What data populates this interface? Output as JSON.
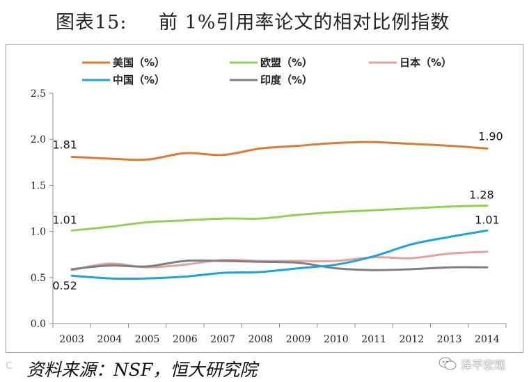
{
  "title": {
    "number": "图表15:",
    "text": "前 1%引用率论文的相对比例指数"
  },
  "source": "资料来源：NSF，恒大研究院",
  "watermark": {
    "brand": "泽平宏观",
    "icon": "wechat-icon",
    "left_mark": "C"
  },
  "chart_data": {
    "type": "line",
    "title": "前 1%引用率论文的相对比例指数",
    "xlabel": "",
    "ylabel": "",
    "ylim": [
      0,
      2.5
    ],
    "yticks": [
      "0.0",
      "0.5",
      "1.0",
      "1.5",
      "2.0",
      "2.5"
    ],
    "categories": [
      "2003",
      "2004",
      "2005",
      "2006",
      "2007",
      "2008",
      "2009",
      "2010",
      "2011",
      "2012",
      "2013",
      "2014"
    ],
    "legend_position": "top",
    "series": [
      {
        "name": "美国（%）",
        "color": "#E07A2E",
        "values": [
          1.81,
          1.79,
          1.78,
          1.85,
          1.83,
          1.9,
          1.93,
          1.96,
          1.97,
          1.95,
          1.93,
          1.9
        ]
      },
      {
        "name": "欧盟（%）",
        "color": "#92D050",
        "values": [
          1.01,
          1.05,
          1.1,
          1.12,
          1.14,
          1.14,
          1.18,
          1.21,
          1.23,
          1.25,
          1.27,
          1.28
        ]
      },
      {
        "name": "日本（%）",
        "color": "#E6A0A0",
        "values": [
          0.58,
          0.65,
          0.61,
          0.64,
          0.69,
          0.68,
          0.68,
          0.68,
          0.72,
          0.71,
          0.76,
          0.78
        ]
      },
      {
        "name": "中国（%）",
        "color": "#1BA3DB",
        "values": [
          0.52,
          0.49,
          0.49,
          0.51,
          0.55,
          0.56,
          0.6,
          0.64,
          0.73,
          0.86,
          0.94,
          1.01
        ]
      },
      {
        "name": "印度（%）",
        "color": "#7F7F7F",
        "values": [
          0.59,
          0.63,
          0.62,
          0.68,
          0.68,
          0.67,
          0.66,
          0.6,
          0.58,
          0.59,
          0.61,
          0.61
        ]
      }
    ],
    "annotations": [
      {
        "text": "1.81",
        "series": 0,
        "index": 0
      },
      {
        "text": "1.90",
        "series": 0,
        "index": 11
      },
      {
        "text": "1.01",
        "series": 1,
        "index": 0
      },
      {
        "text": "1.28",
        "series": 1,
        "index": 11
      },
      {
        "text": "1.01",
        "series": 3,
        "index": 11
      },
      {
        "text": "0.52",
        "series": 3,
        "index": 0
      }
    ]
  }
}
